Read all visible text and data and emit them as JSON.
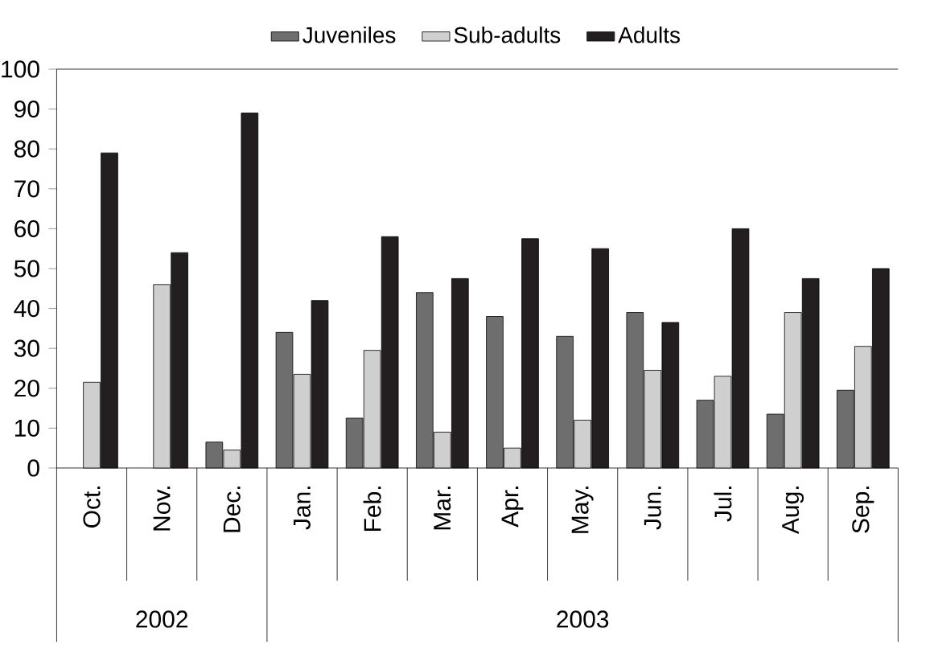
{
  "chart_data": {
    "type": "bar",
    "categories": [
      "Oct.",
      "Nov.",
      "Dec.",
      "Jan.",
      "Feb.",
      "Mar.",
      "Apr.",
      "May.",
      "Jun.",
      "Jul.",
      "Aug.",
      "Sep."
    ],
    "series": [
      {
        "name": "Juveniles",
        "color": "#6e6e6e",
        "values": [
          null,
          null,
          6.5,
          34,
          12.5,
          44,
          38,
          33,
          39,
          17,
          13.5,
          19.5
        ]
      },
      {
        "name": "Sub-adults",
        "color": "#cfcfcf",
        "values": [
          21.5,
          46,
          4.5,
          23.5,
          29.5,
          9,
          5,
          12,
          24.5,
          23,
          39,
          30.5
        ]
      },
      {
        "name": "Adults",
        "color": "#231f20",
        "values": [
          79,
          54,
          89,
          42,
          58,
          47.5,
          57.5,
          55,
          36.5,
          60,
          47.5,
          50
        ]
      }
    ],
    "ylim": [
      0,
      100
    ],
    "yticks": [
      0,
      10,
      20,
      30,
      40,
      50,
      60,
      70,
      80,
      90,
      100
    ],
    "grid": false,
    "legend": "top",
    "annotations": [
      "2002",
      "2003"
    ]
  }
}
